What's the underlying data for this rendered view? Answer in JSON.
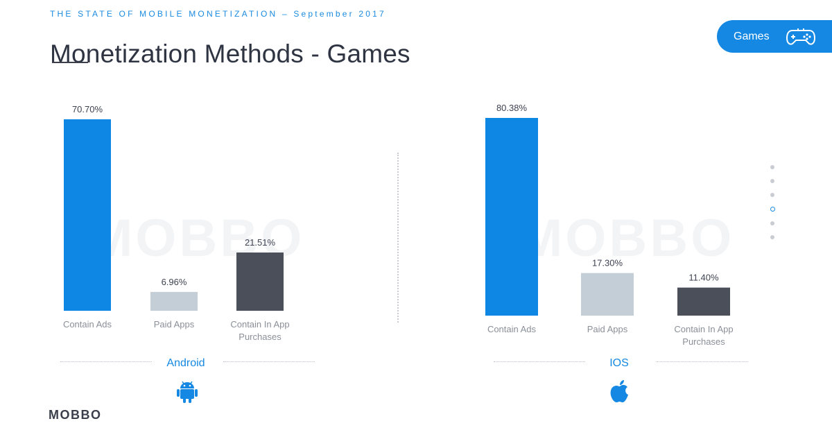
{
  "header": {
    "kicker": "THE STATE OF MOBILE MONETIZATION – September 2017",
    "title": "Monetization Methods - Games"
  },
  "category_pill": {
    "label": "Games",
    "icon": "gamepad-icon"
  },
  "watermark": "MOBBO",
  "footer": {
    "logo": "MOBBO"
  },
  "dot_nav": {
    "count": 6,
    "active_index": 3
  },
  "colors": {
    "ads": "#0d87e3",
    "paid": "#c3ced7",
    "iap": "#4a4f59",
    "accent": "#1488e2"
  },
  "chart_data": [
    {
      "type": "bar",
      "platform": "Android",
      "platform_icon": "android-icon",
      "categories": [
        "Contain Ads",
        "Paid Apps",
        "Contain In App\nPurchases"
      ],
      "values": [
        70.7,
        6.96,
        21.51
      ],
      "value_labels": [
        "70.70%",
        "6.96%",
        "21.51%"
      ],
      "ylim": [
        0,
        70.7
      ]
    },
    {
      "type": "bar",
      "platform": "IOS",
      "platform_icon": "apple-icon",
      "categories": [
        "Contain Ads",
        "Paid Apps",
        "Contain In App\nPurchases"
      ],
      "values": [
        80.38,
        17.3,
        11.4
      ],
      "value_labels": [
        "80.38%",
        "17.30%",
        "11.40%"
      ],
      "ylim": [
        0,
        80.38
      ]
    }
  ]
}
